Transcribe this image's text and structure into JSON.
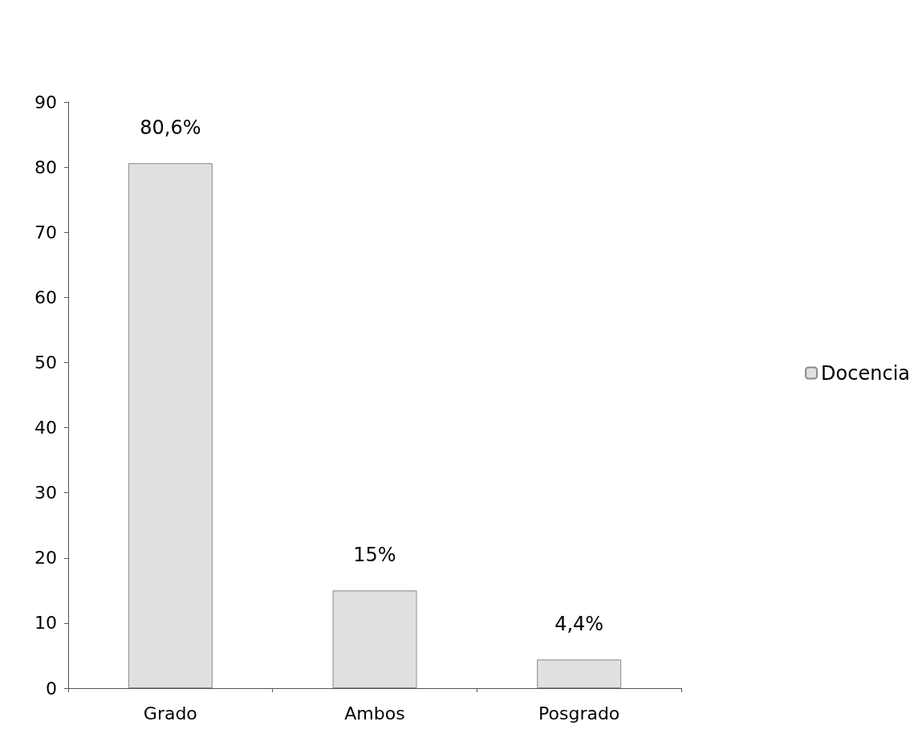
{
  "chart_data": {
    "type": "bar",
    "categories": [
      "Grado",
      "Ambos",
      "Posgrado"
    ],
    "series": [
      {
        "name": "Docencia",
        "color": "#e0e0e0",
        "values": [
          80.6,
          15,
          4.4
        ],
        "value_labels": [
          "80,6%",
          "15%",
          "4,4%"
        ]
      }
    ],
    "ylim": [
      0,
      90
    ],
    "yticks": [
      0,
      10,
      20,
      30,
      40,
      50,
      60,
      70,
      80,
      90
    ],
    "grid": false,
    "legend": "right"
  }
}
